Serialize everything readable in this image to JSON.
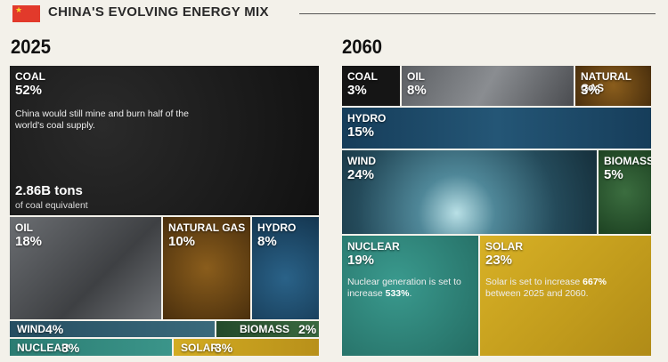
{
  "title": "CHINA'S EVOLVING ENERGY MIX",
  "chart_data": [
    {
      "type": "treemap",
      "year": "2025",
      "items": [
        {
          "name": "COAL",
          "value": 52,
          "label": "52%",
          "note": "China would still mine and burn half of the world's coal supply.",
          "big": "2.86B tons",
          "small": "of coal equivalent",
          "color": "#1b1b1b"
        },
        {
          "name": "OIL",
          "value": 18,
          "label": "18%",
          "color": "#5b5e62"
        },
        {
          "name": "NATURAL GAS",
          "value": 10,
          "label": "10%",
          "color": "#7a5118"
        },
        {
          "name": "HYDRO",
          "value": 8,
          "label": "8%",
          "color": "#1e4a6b"
        },
        {
          "name": "WIND",
          "value": 4,
          "label": "4%",
          "color": "#2f5a6e"
        },
        {
          "name": "BIOMASS",
          "value": 2,
          "label": "2%",
          "color": "#2f5f35"
        },
        {
          "name": "NUCLEAR",
          "value": 3,
          "label": "3%",
          "color": "#2e8479"
        },
        {
          "name": "SOLAR",
          "value": 3,
          "label": "3%",
          "color": "#c9a21e"
        }
      ]
    },
    {
      "type": "treemap",
      "year": "2060",
      "items": [
        {
          "name": "COAL",
          "value": 3,
          "label": "3%",
          "color": "#1b1b1b"
        },
        {
          "name": "OIL",
          "value": 8,
          "label": "8%",
          "color": "#6a6d71"
        },
        {
          "name": "NATURAL GAS",
          "value": 3,
          "label": "3%",
          "color": "#7a5118"
        },
        {
          "name": "HYDRO",
          "value": 15,
          "label": "15%",
          "color": "#1d4a6a"
        },
        {
          "name": "WIND",
          "value": 24,
          "label": "24%",
          "color": "#2e5f72"
        },
        {
          "name": "BIOMASS",
          "value": 5,
          "label": "5%",
          "color": "#2d5e34"
        },
        {
          "name": "NUCLEAR",
          "value": 19,
          "label": "19%",
          "note_parts": [
            "Nuclear generation is set to increase ",
            "533%",
            "."
          ],
          "color": "#2f857a"
        },
        {
          "name": "SOLAR",
          "value": 23,
          "label": "23%",
          "note_parts": [
            "Solar is set to increase ",
            "667%",
            " between 2025 and 2060."
          ],
          "color": "#c9a21e"
        }
      ]
    }
  ]
}
